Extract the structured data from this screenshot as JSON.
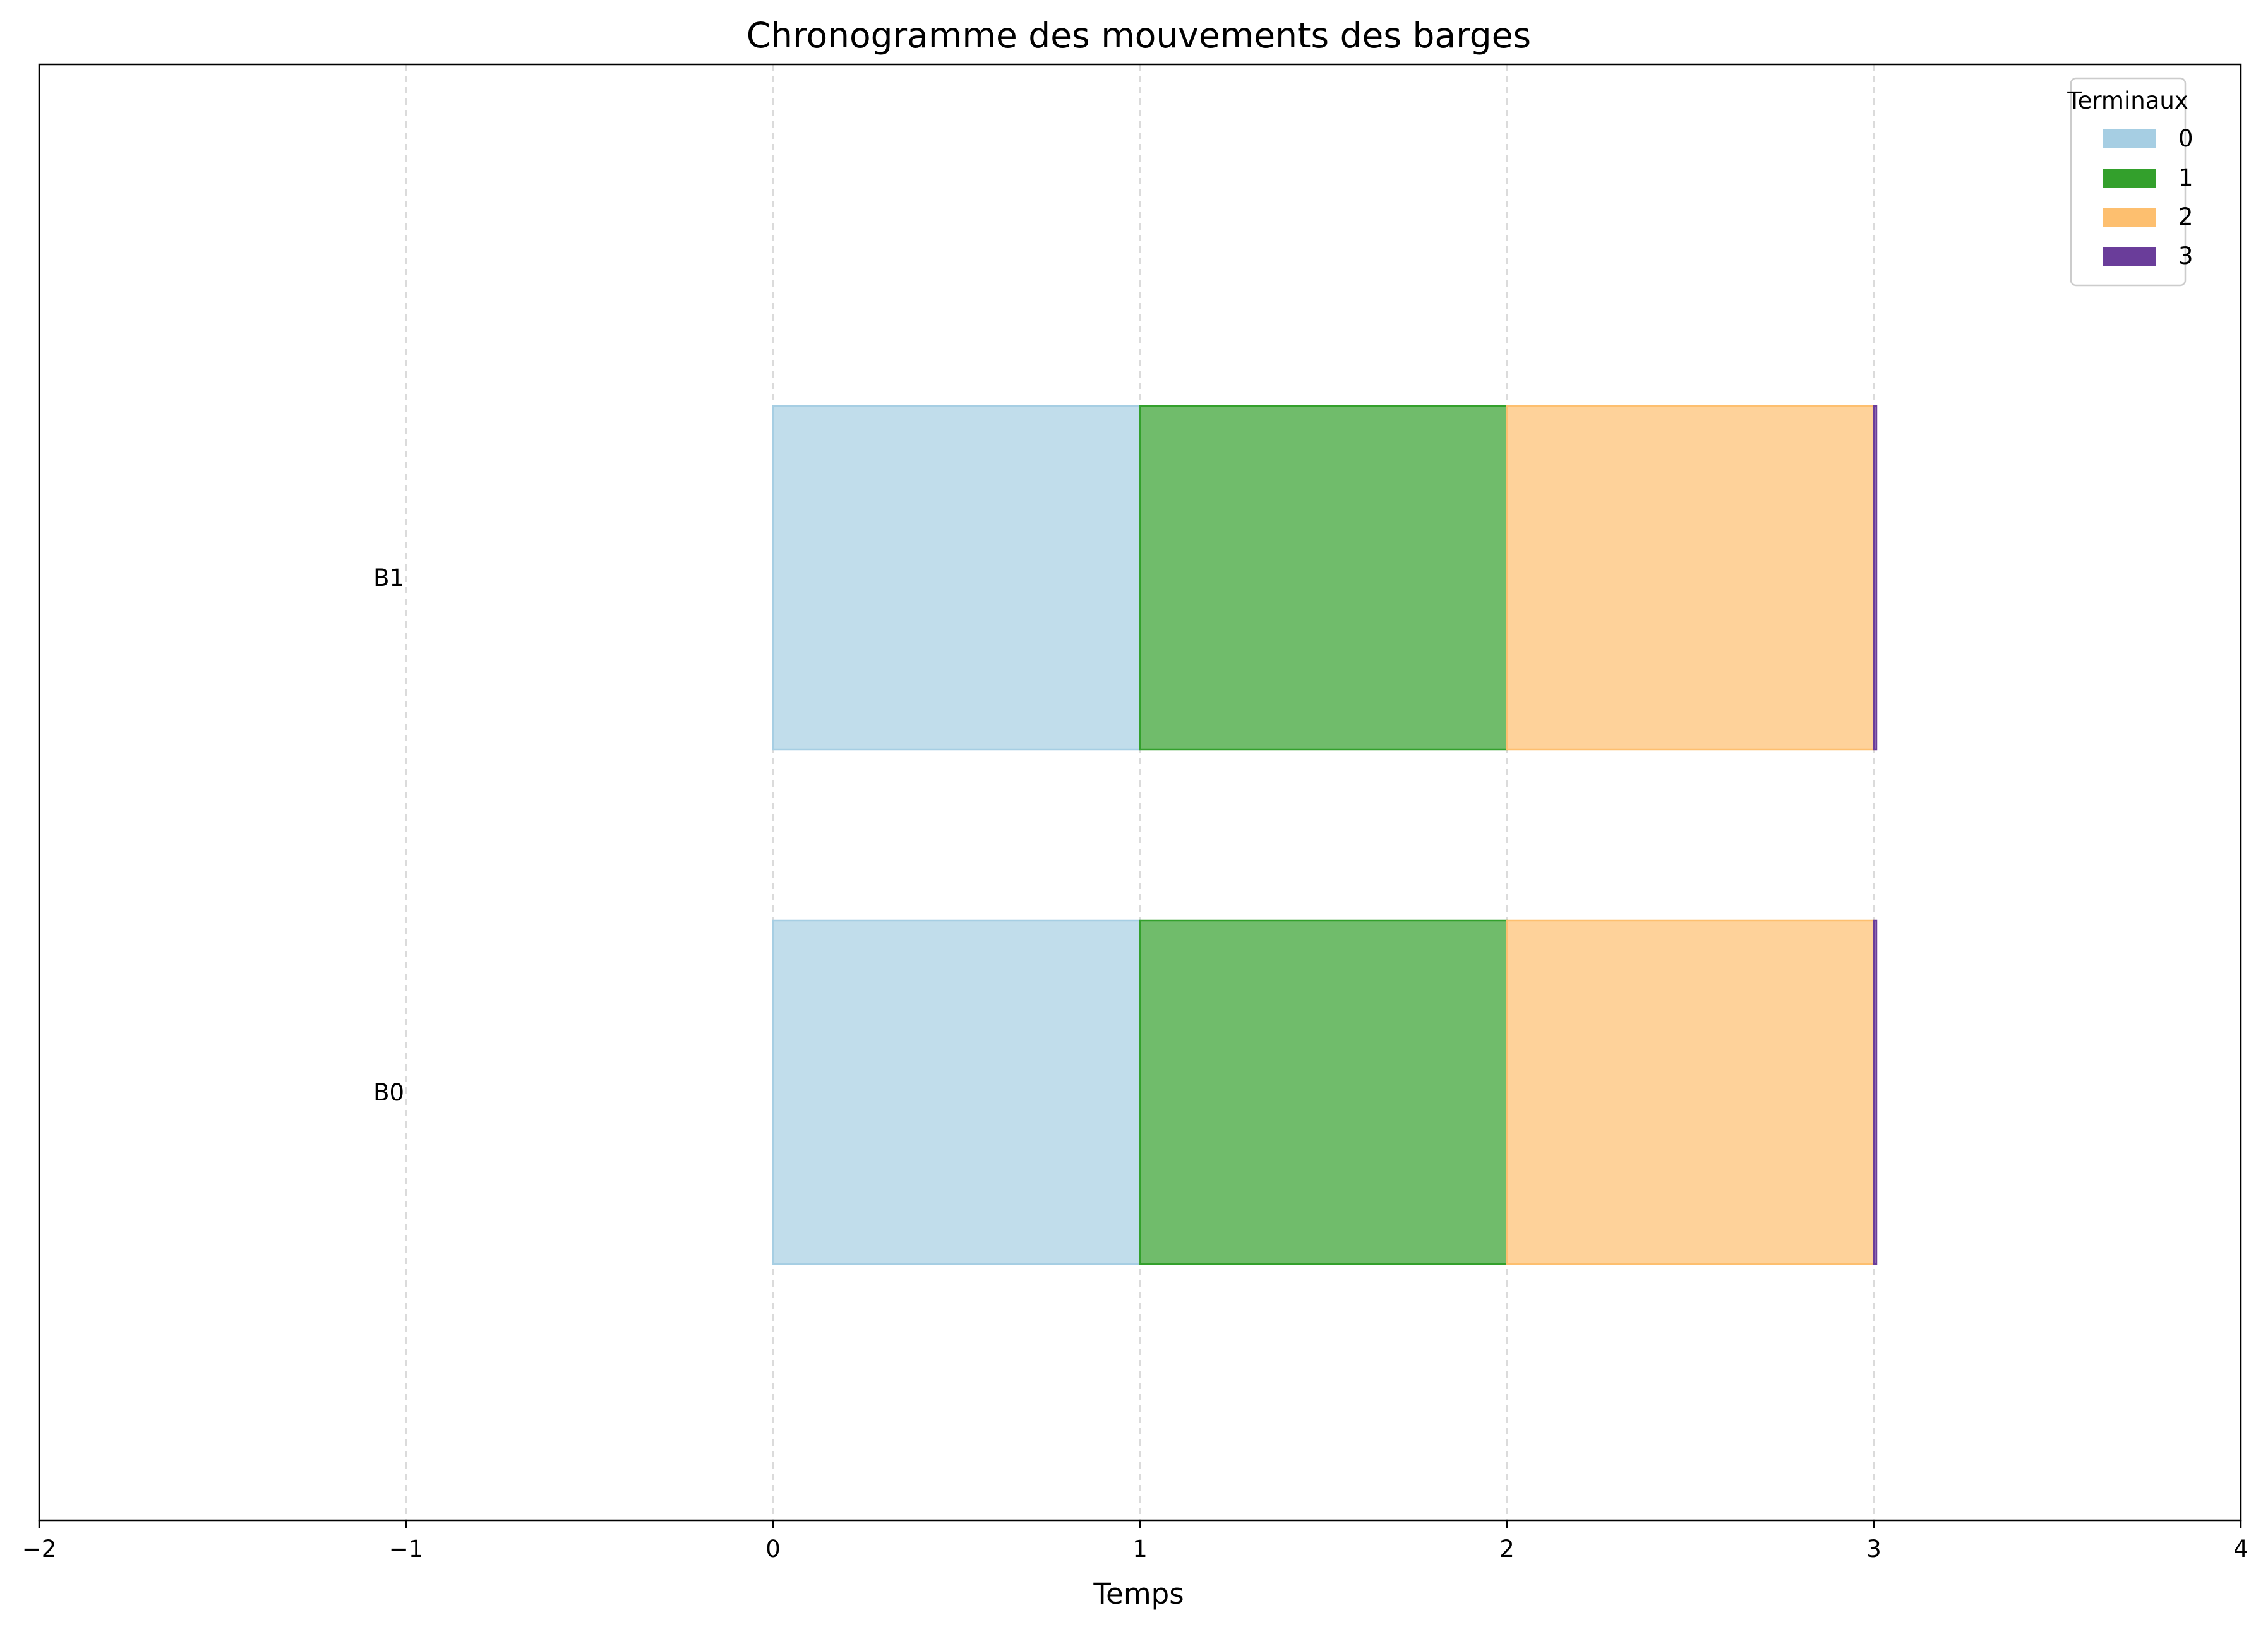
{
  "chart_data": {
    "type": "bar",
    "orientation": "horizontal-gantt",
    "title": "Chronogramme des mouvements des barges",
    "xlabel": "Temps",
    "ylabel": "",
    "xlim": [
      -2,
      4
    ],
    "xticks": [
      -2,
      -1,
      0,
      1,
      2,
      3,
      4
    ],
    "xtick_labels": [
      "−2",
      "−1",
      "0",
      "1",
      "2",
      "3",
      "4"
    ],
    "grid": "x-dashed",
    "categories": [
      "B0",
      "B1"
    ],
    "legend": {
      "title": "Terminaux",
      "placement": "top-right",
      "entries": [
        {
          "label": "0",
          "color": "#a6cee3"
        },
        {
          "label": "1",
          "color": "#33a02c"
        },
        {
          "label": "2",
          "color": "#fdbf6f"
        },
        {
          "label": "3",
          "color": "#6a3d9a"
        }
      ]
    },
    "series": [
      {
        "name": "0",
        "segments": [
          {
            "barge": "B0",
            "start": 0,
            "end": 1
          },
          {
            "barge": "B1",
            "start": 0,
            "end": 1
          }
        ]
      },
      {
        "name": "1",
        "segments": [
          {
            "barge": "B0",
            "start": 1,
            "end": 2
          },
          {
            "barge": "B1",
            "start": 1,
            "end": 2
          }
        ]
      },
      {
        "name": "2",
        "segments": [
          {
            "barge": "B0",
            "start": 2,
            "end": 3
          },
          {
            "barge": "B1",
            "start": 2,
            "end": 3
          }
        ]
      },
      {
        "name": "3",
        "segments": [
          {
            "barge": "B0",
            "start": 3,
            "end": 3
          },
          {
            "barge": "B1",
            "start": 3,
            "end": 3
          }
        ]
      }
    ]
  }
}
